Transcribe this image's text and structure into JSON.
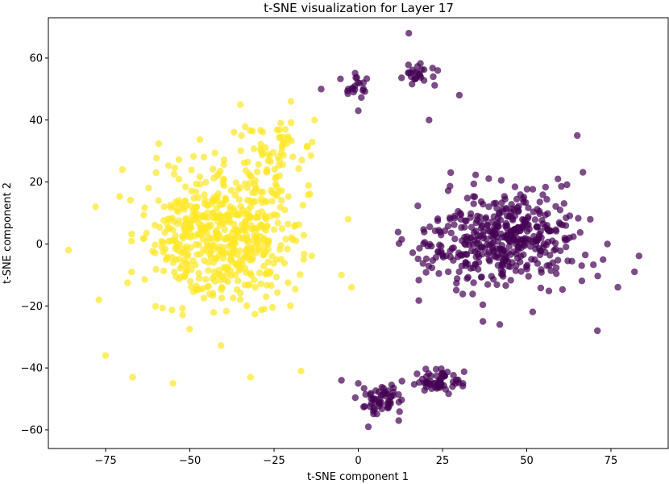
{
  "chart_data": {
    "type": "scatter",
    "title": "t-SNE visualization for Layer 17",
    "xlabel": "t-SNE component 1",
    "ylabel": "t-SNE component 2",
    "xlim": [
      -92,
      92
    ],
    "ylim": [
      -66,
      73
    ],
    "xticks": [
      -75,
      -50,
      -25,
      0,
      25,
      50,
      75
    ],
    "yticks": [
      -60,
      -40,
      -20,
      0,
      20,
      40,
      60
    ],
    "grid": false,
    "legend": "none",
    "marker_alpha": 0.7,
    "series": [
      {
        "color": "#fde725",
        "approx_points": 620,
        "clusters": [
          {
            "center": [
              -40,
              3
            ],
            "spread": [
              18,
              19
            ],
            "n": 560
          },
          {
            "center": [
              -25,
              30
            ],
            "spread": [
              10,
              9
            ],
            "n": 60
          }
        ],
        "points": [
          [
            -86,
            -2
          ],
          [
            -77,
            -18
          ],
          [
            -55,
            -45
          ],
          [
            -32,
            -43
          ],
          [
            -17,
            -41
          ],
          [
            -35,
            45
          ],
          [
            -20,
            46
          ],
          [
            -13,
            40
          ],
          [
            -3,
            8
          ],
          [
            -5,
            -10
          ],
          [
            -2,
            -14
          ],
          [
            -78,
            12
          ],
          [
            -70,
            24
          ],
          [
            -60,
            23
          ],
          [
            -75,
            -36
          ],
          [
            -67,
            -43
          ]
        ]
      },
      {
        "color": "#440154",
        "approx_points": 640,
        "clusters": [
          {
            "center": [
              43,
              2
            ],
            "spread": [
              20,
              14
            ],
            "n": 440
          },
          {
            "center": [
              -1,
              51
            ],
            "spread": [
              3,
              4
            ],
            "n": 20
          },
          {
            "center": [
              18,
              55
            ],
            "spread": [
              4,
              4
            ],
            "n": 25
          },
          {
            "center": [
              7,
              -50
            ],
            "spread": [
              5,
              4
            ],
            "n": 55
          },
          {
            "center": [
              24,
              -44
            ],
            "spread": [
              6,
              4
            ],
            "n": 60
          }
        ],
        "points": [
          [
            15,
            68
          ],
          [
            -11,
            50
          ],
          [
            0,
            43
          ],
          [
            30,
            48
          ],
          [
            21,
            40
          ],
          [
            71,
            -28
          ],
          [
            82,
            -9
          ],
          [
            65,
            35
          ],
          [
            3,
            -59
          ],
          [
            12,
            -57
          ],
          [
            37,
            -25
          ],
          [
            42,
            -26
          ],
          [
            -5,
            -44
          ],
          [
            0,
            -45
          ]
        ]
      }
    ]
  }
}
